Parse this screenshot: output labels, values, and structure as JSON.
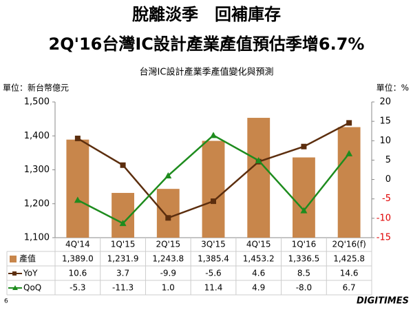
{
  "title": "脫離淡季　回補庫存",
  "subtitle": "2Q'16台灣IC設計產業產值預估季增6.7%",
  "page_number": "6",
  "brand": "DIGITIMES",
  "chart_data": {
    "type": "bar_line",
    "title": "台灣IC設計產業季產值變化與預測",
    "y_label": "單位：新台幣億元",
    "y2_label": "單位：%",
    "categories": [
      "4Q'14",
      "1Q'15",
      "2Q'15",
      "3Q'15",
      "4Q'15",
      "1Q'16",
      "2Q'16(f)"
    ],
    "ylim": [
      1100,
      1500
    ],
    "yticks": [
      {
        "value": 1100,
        "label": "1,100"
      },
      {
        "value": 1200,
        "label": "1,200"
      },
      {
        "value": 1300,
        "label": "1,300"
      },
      {
        "value": 1400,
        "label": "1,400"
      },
      {
        "value": 1500,
        "label": "1,500"
      }
    ],
    "y2lim": [
      -15,
      20
    ],
    "y2ticks": [
      -15,
      -10,
      -5,
      0,
      5,
      10,
      15,
      20
    ],
    "y2_negative_color": "#e00000",
    "series": [
      {
        "name": "產值",
        "type": "bar",
        "color": "#c8864b",
        "values": [
          1389.0,
          1231.9,
          1243.8,
          1385.4,
          1453.2,
          1336.5,
          1425.8
        ],
        "value_labels": [
          "1,389.0",
          "1,231.9",
          "1,243.8",
          "1,385.4",
          "1,453.2",
          "1,336.5",
          "1,425.8"
        ]
      },
      {
        "name": "YoY",
        "type": "line",
        "axis": "y2",
        "marker": "square",
        "color": "#5c2e0e",
        "values": [
          10.6,
          3.7,
          -9.9,
          -5.6,
          4.6,
          8.5,
          14.6
        ],
        "value_labels": [
          "10.6",
          "3.7",
          "-9.9",
          "-5.6",
          "4.6",
          "8.5",
          "14.6"
        ]
      },
      {
        "name": "QoQ",
        "type": "line",
        "axis": "y2",
        "marker": "triangle",
        "color": "#1e8c1e",
        "values": [
          -5.3,
          -11.3,
          1.0,
          11.4,
          4.9,
          -8.0,
          6.7
        ],
        "value_labels": [
          "-5.3",
          "-11.3",
          "1.0",
          "11.4",
          "4.9",
          "-8.0",
          "6.7"
        ]
      }
    ]
  }
}
